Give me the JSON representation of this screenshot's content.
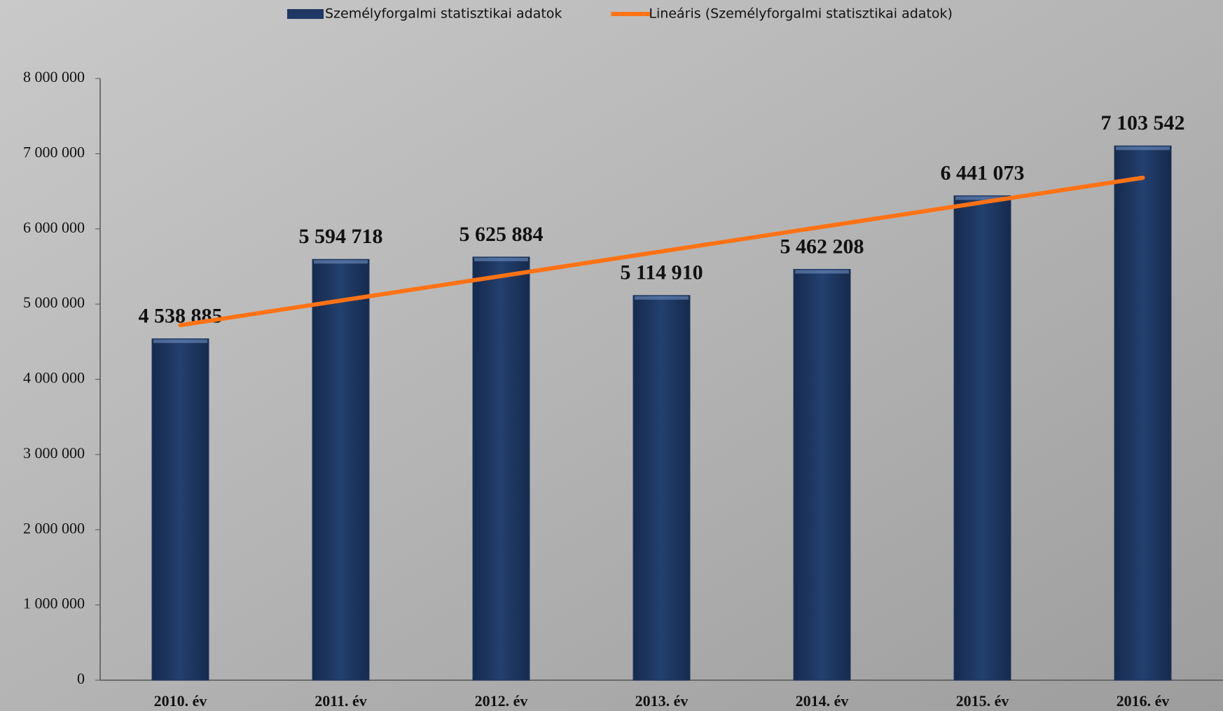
{
  "chart_data": {
    "type": "bar",
    "categories": [
      "2010. év",
      "2011. év",
      "2012. év",
      "2013. év",
      "2014. év",
      "2015. év",
      "2016. év"
    ],
    "series": [
      {
        "name": "Személyforgalmi statisztikai adatok",
        "color": "#1f3864",
        "values": [
          4538885,
          5594718,
          5625884,
          5114910,
          5462208,
          6441073,
          7103542
        ],
        "value_labels": [
          "4 538 885",
          "5 594 718",
          "5 625 884",
          "5 114 910",
          "5 462 208",
          "6 441 073",
          "7 103 542"
        ]
      },
      {
        "name": "Lineáris (Személyforgalmi statisztikai adatok)",
        "color": "#ff7215",
        "type": "line",
        "values": [
          4720000,
          5047000,
          5373000,
          5700000,
          6027000,
          6353000,
          6680000
        ]
      }
    ],
    "ylim": [
      0,
      8000000
    ],
    "yticks": [
      0,
      {
        "value": 1000000,
        "label": "1 000 000"
      },
      {
        "value": 2000000,
        "label": "2 000 000"
      },
      {
        "value": 3000000,
        "label": "3 000 000"
      },
      {
        "value": 4000000,
        "label": "4 000 000"
      },
      {
        "value": 5000000,
        "label": "5 000 000"
      },
      {
        "value": 6000000,
        "label": "6 000 000"
      },
      {
        "value": 7000000,
        "label": "7 000 000"
      },
      {
        "value": 8000000,
        "label": "8 000 000"
      }
    ],
    "legend": "top"
  }
}
